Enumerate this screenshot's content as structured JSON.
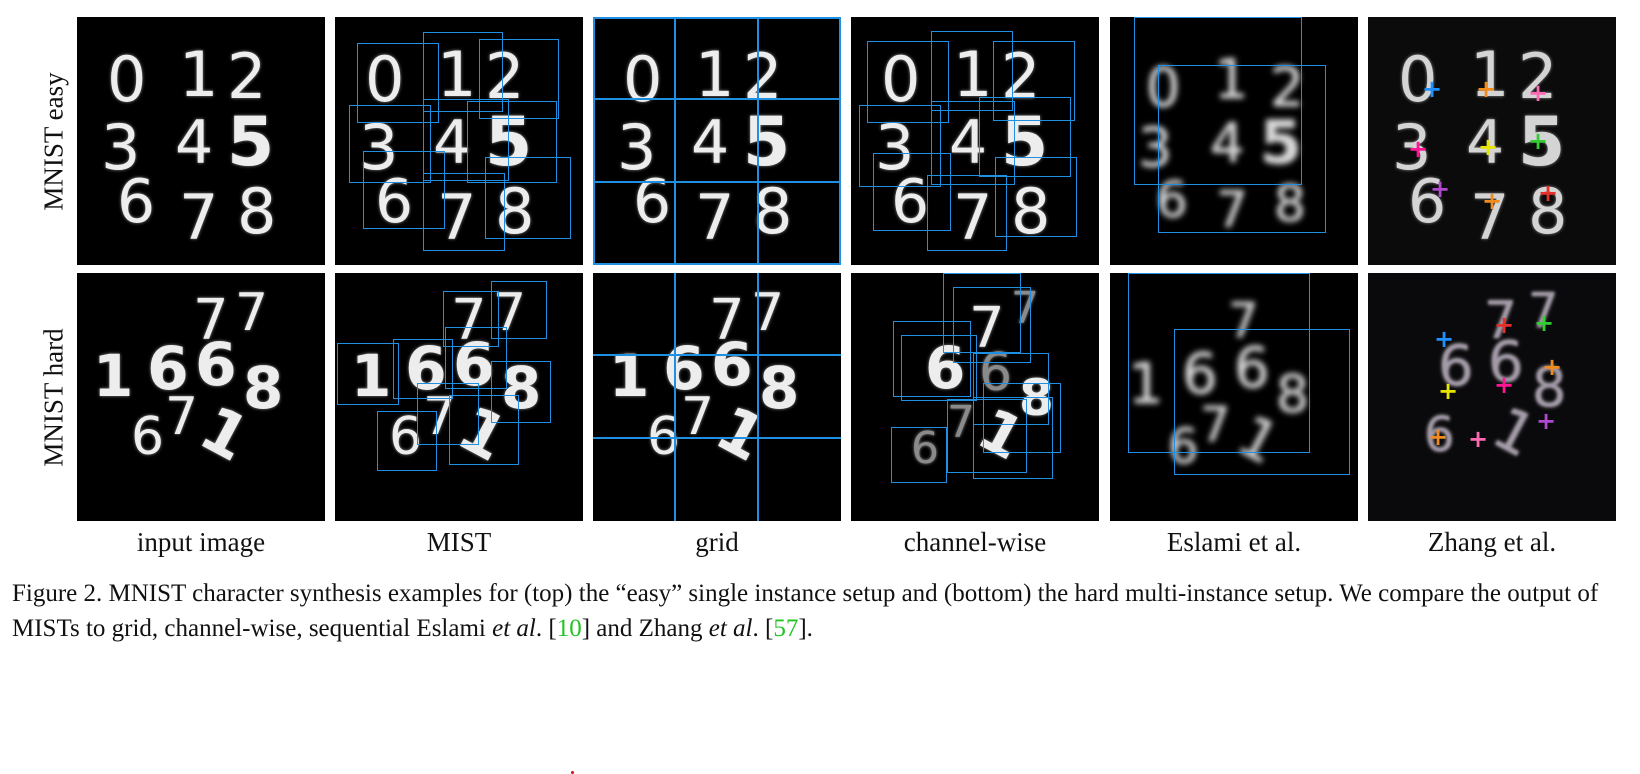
{
  "figure": {
    "row_labels": [
      "MNIST easy",
      "MNIST hard"
    ],
    "column_labels": [
      "input image",
      "MIST",
      "grid",
      "channel-wise",
      "Eslami et al.",
      "Zhang et al."
    ],
    "easy_digits": [
      "0",
      "1",
      "2",
      "3",
      "4",
      "5",
      "6",
      "7",
      "8"
    ],
    "hard_digits": [
      "7",
      "7",
      "1",
      "6",
      "6",
      "8",
      "7",
      "6",
      "1"
    ]
  },
  "caption": {
    "lead": "Figure 2.  MNIST character synthesis examples for (top) the “easy” single instance setup and (bottom) the hard multi-instance setup. We compare the output of MISTs to grid, channel-wise, sequential Eslami ",
    "etal_1": "et al",
    "mid_1": ". [",
    "ref_1": "10",
    "mid_2": "] and Zhang ",
    "etal_2": "et al",
    "mid_3": ". [",
    "ref_2": "57",
    "tail": "]."
  },
  "colors": {
    "bbox": "#1f8fe3",
    "ref": "#22c322",
    "plus_markers": [
      "#1e90ff",
      "#f08c1e",
      "#ff69b4",
      "#ff1493",
      "#e6e600",
      "#32cd32",
      "#b048d0",
      "#f08c1e",
      "#e8302a"
    ]
  }
}
